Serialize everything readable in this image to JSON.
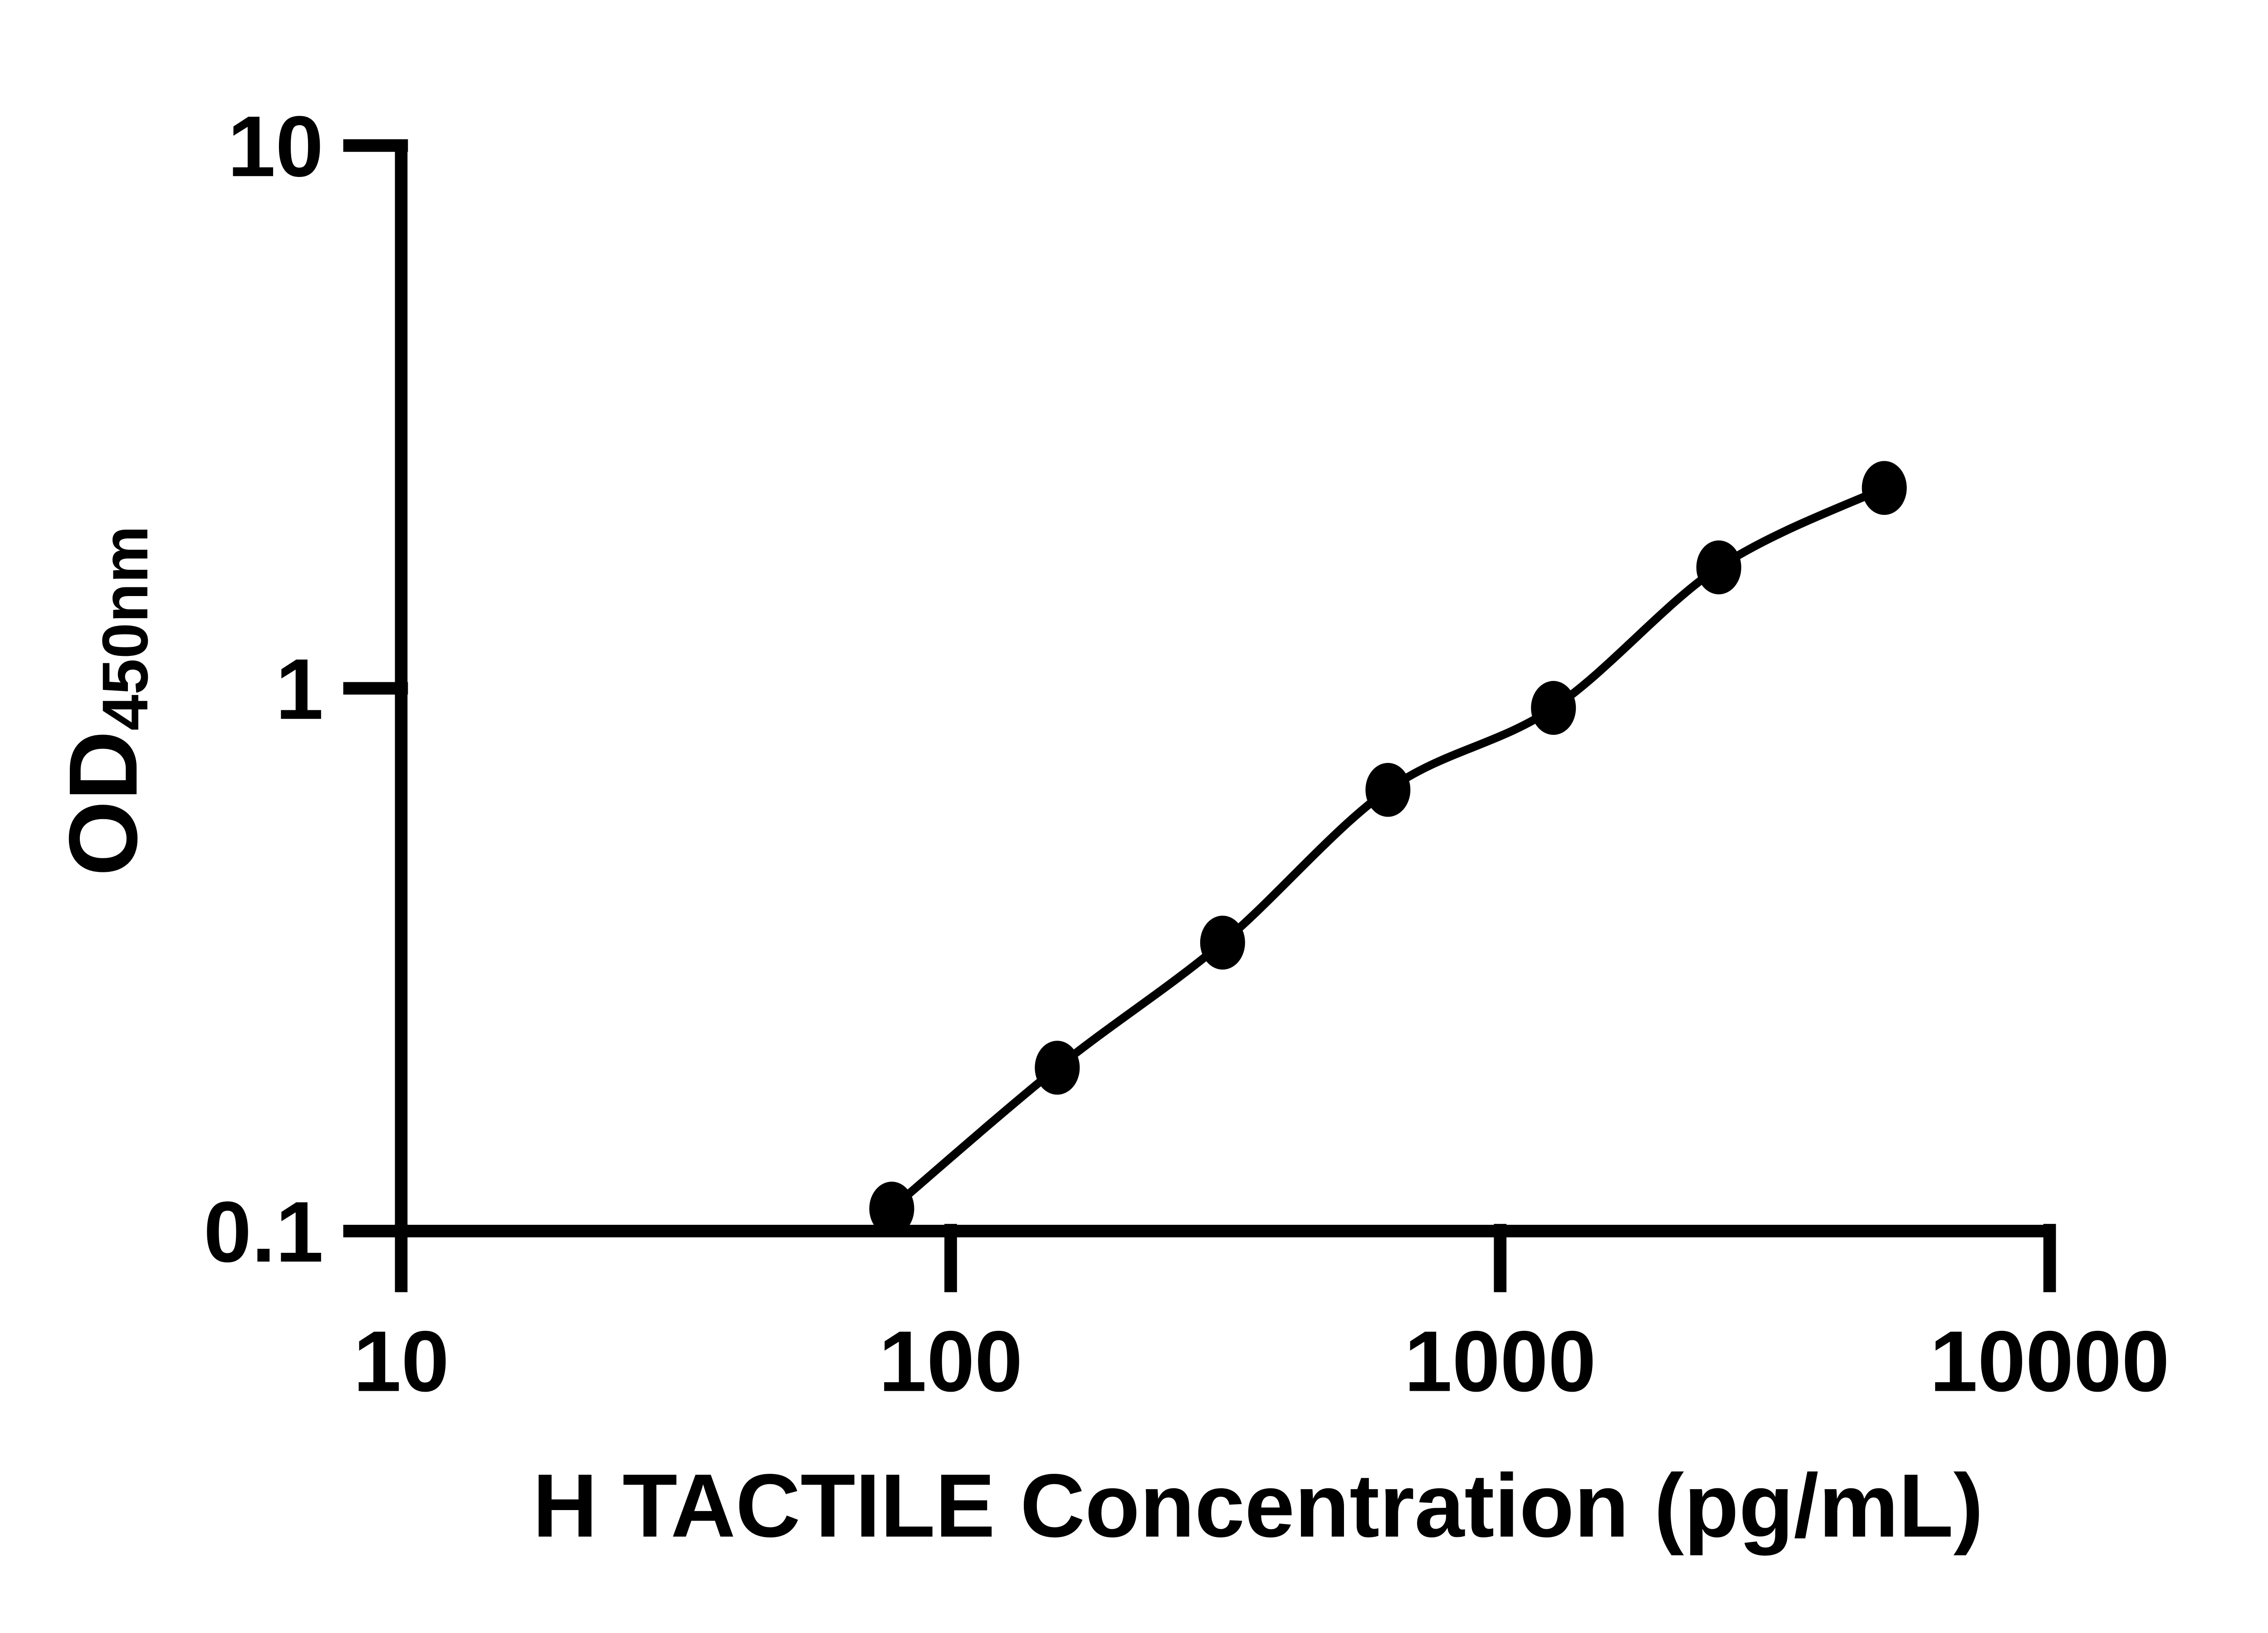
{
  "chart_data": {
    "type": "scatter",
    "title": "",
    "xlabel": "H TACTILE Concentration (pg/mL)",
    "ylabel_main": "OD",
    "ylabel_subscript": "450nm",
    "x_scale": "log",
    "y_scale": "log",
    "xlim": [
      10,
      10000
    ],
    "ylim": [
      0.1,
      10
    ],
    "x_tick_labels": [
      "10",
      "100",
      "1000",
      "10000"
    ],
    "y_tick_labels": [
      "0.1",
      "1",
      "10"
    ],
    "grid": false,
    "legend_position": "none",
    "marker": "filled-circle",
    "line_style": "smooth-fit-curve",
    "series": [
      {
        "points": [
          {
            "x": 78.125,
            "y": 0.11
          },
          {
            "x": 156.25,
            "y": 0.2
          },
          {
            "x": 312.5,
            "y": 0.34
          },
          {
            "x": 625,
            "y": 0.65
          },
          {
            "x": 1250,
            "y": 0.92
          },
          {
            "x": 2500,
            "y": 1.67
          },
          {
            "x": 5000,
            "y": 2.34
          }
        ]
      }
    ]
  },
  "colors": {
    "background": "#ffffff",
    "ink": "#000000"
  }
}
